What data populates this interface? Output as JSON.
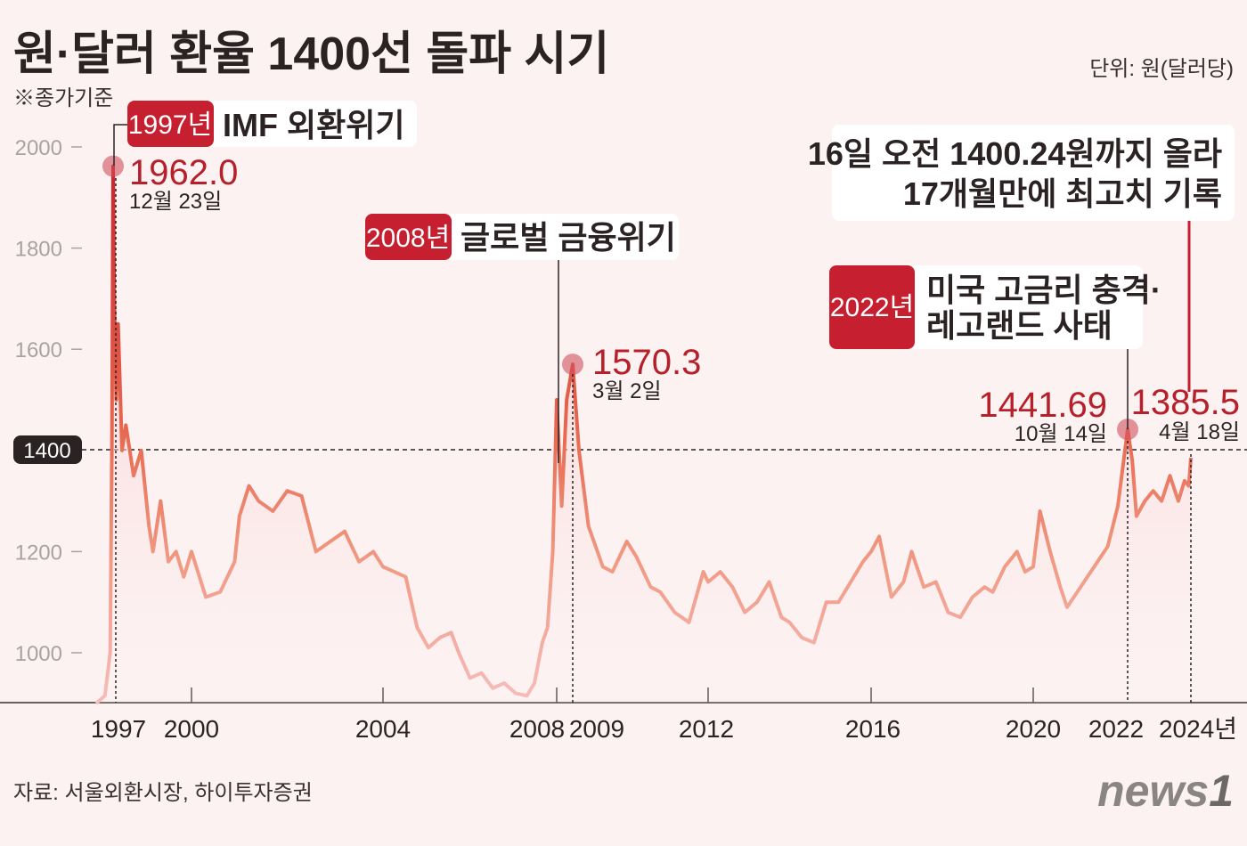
{
  "header": {
    "title": "원·달러 환율 1400선 돌파 시기",
    "note": "※종가기준",
    "unit": "단위: 원(달러당)"
  },
  "footer": {
    "source": "자료: 서울외환시장, 하이투자증권",
    "logo": "news1"
  },
  "colors": {
    "accent": "#c62030",
    "line_high": "#d8342c",
    "line_mid": "#ef8a6a",
    "line_low": "#f4b1ae",
    "background": "#fdf2f2"
  },
  "annotations": {
    "imf": {
      "year": "1997년",
      "label": "IMF 외환위기",
      "value": "1962.0",
      "date": "12월 23일"
    },
    "gfc": {
      "year": "2008년",
      "label": "글로벌 금융위기",
      "value": "1570.3",
      "date": "3월 2일"
    },
    "legoland": {
      "year": "2022년",
      "label_line1": "미국 고금리 충격·",
      "label_line2": "레고랜드 사태",
      "value": "1441.69",
      "date": "10월 14일"
    },
    "latest": {
      "line1": "16일 오전 1400.24원까지 올라",
      "line2": "17개월만에 최고치 기록",
      "value": "1385.5",
      "date": "4월 18일"
    },
    "threshold_label": "1400"
  },
  "chart_data": {
    "type": "line",
    "title": "원·달러 환율 1400선 돌파 시기",
    "xlabel": "",
    "ylabel": "원(달러당)",
    "ylim": [
      900,
      2000
    ],
    "yticks": [
      "2000",
      "1800",
      "1600",
      "1200",
      "1000"
    ],
    "xticks": [
      "1997",
      "2000",
      "2004",
      "2008",
      "2009",
      "2012",
      "2016",
      "2020",
      "2022",
      "2024년"
    ],
    "reference_line": 1400,
    "highlights": [
      {
        "x": 1997.97,
        "y": 1962.0
      },
      {
        "x": 2009.17,
        "y": 1570.3
      },
      {
        "x": 2022.79,
        "y": 1441.69
      },
      {
        "x": 2024.3,
        "y": 1385.5
      }
    ],
    "points": [
      [
        1997.0,
        900
      ],
      [
        1997.5,
        915
      ],
      [
        1997.8,
        1000
      ],
      [
        1997.9,
        1400
      ],
      [
        1997.97,
        1962
      ],
      [
        1998.0,
        1700
      ],
      [
        1998.05,
        1500
      ],
      [
        1998.1,
        1650
      ],
      [
        1998.2,
        1400
      ],
      [
        1998.3,
        1450
      ],
      [
        1998.5,
        1350
      ],
      [
        1998.7,
        1400
      ],
      [
        1998.9,
        1250
      ],
      [
        1999.0,
        1200
      ],
      [
        1999.2,
        1300
      ],
      [
        1999.4,
        1180
      ],
      [
        1999.6,
        1200
      ],
      [
        1999.8,
        1150
      ],
      [
        2000.0,
        1200
      ],
      [
        2000.3,
        1110
      ],
      [
        2000.6,
        1120
      ],
      [
        2000.9,
        1180
      ],
      [
        2001.0,
        1270
      ],
      [
        2001.2,
        1330
      ],
      [
        2001.4,
        1300
      ],
      [
        2001.7,
        1280
      ],
      [
        2002.0,
        1320
      ],
      [
        2002.3,
        1310
      ],
      [
        2002.6,
        1200
      ],
      [
        2002.9,
        1220
      ],
      [
        2003.2,
        1240
      ],
      [
        2003.5,
        1180
      ],
      [
        2003.8,
        1200
      ],
      [
        2004.0,
        1170
      ],
      [
        2004.3,
        1160
      ],
      [
        2004.6,
        1150
      ],
      [
        2004.9,
        1050
      ],
      [
        2005.2,
        1010
      ],
      [
        2005.5,
        1030
      ],
      [
        2005.8,
        1040
      ],
      [
        2006.0,
        1000
      ],
      [
        2006.3,
        950
      ],
      [
        2006.6,
        960
      ],
      [
        2006.9,
        930
      ],
      [
        2007.2,
        940
      ],
      [
        2007.5,
        920
      ],
      [
        2007.8,
        915
      ],
      [
        2008.0,
        940
      ],
      [
        2008.3,
        1020
      ],
      [
        2008.5,
        1050
      ],
      [
        2008.7,
        1200
      ],
      [
        2008.85,
        1500
      ],
      [
        2008.95,
        1290
      ],
      [
        2009.05,
        1500
      ],
      [
        2009.17,
        1570.3
      ],
      [
        2009.3,
        1400
      ],
      [
        2009.5,
        1250
      ],
      [
        2009.8,
        1170
      ],
      [
        2010.0,
        1160
      ],
      [
        2010.3,
        1220
      ],
      [
        2010.5,
        1190
      ],
      [
        2010.8,
        1130
      ],
      [
        2011.0,
        1120
      ],
      [
        2011.3,
        1080
      ],
      [
        2011.6,
        1060
      ],
      [
        2011.9,
        1160
      ],
      [
        2012.0,
        1140
      ],
      [
        2012.3,
        1160
      ],
      [
        2012.6,
        1130
      ],
      [
        2012.9,
        1080
      ],
      [
        2013.2,
        1100
      ],
      [
        2013.5,
        1140
      ],
      [
        2013.8,
        1070
      ],
      [
        2014.0,
        1060
      ],
      [
        2014.3,
        1030
      ],
      [
        2014.6,
        1020
      ],
      [
        2014.9,
        1100
      ],
      [
        2015.2,
        1100
      ],
      [
        2015.5,
        1140
      ],
      [
        2015.8,
        1180
      ],
      [
        2016.0,
        1200
      ],
      [
        2016.2,
        1230
      ],
      [
        2016.5,
        1110
      ],
      [
        2016.8,
        1140
      ],
      [
        2017.0,
        1200
      ],
      [
        2017.3,
        1130
      ],
      [
        2017.6,
        1140
      ],
      [
        2017.9,
        1080
      ],
      [
        2018.2,
        1070
      ],
      [
        2018.5,
        1110
      ],
      [
        2018.8,
        1130
      ],
      [
        2019.0,
        1120
      ],
      [
        2019.3,
        1170
      ],
      [
        2019.6,
        1200
      ],
      [
        2019.8,
        1160
      ],
      [
        2020.0,
        1170
      ],
      [
        2020.2,
        1280
      ],
      [
        2020.5,
        1200
      ],
      [
        2020.8,
        1130
      ],
      [
        2021.0,
        1090
      ],
      [
        2021.3,
        1120
      ],
      [
        2021.6,
        1150
      ],
      [
        2021.9,
        1180
      ],
      [
        2022.2,
        1210
      ],
      [
        2022.5,
        1290
      ],
      [
        2022.79,
        1441.69
      ],
      [
        2022.9,
        1380
      ],
      [
        2023.0,
        1270
      ],
      [
        2023.2,
        1300
      ],
      [
        2023.4,
        1320
      ],
      [
        2023.6,
        1300
      ],
      [
        2023.8,
        1350
      ],
      [
        2024.0,
        1300
      ],
      [
        2024.15,
        1340
      ],
      [
        2024.25,
        1330
      ],
      [
        2024.3,
        1385.5
      ]
    ]
  }
}
